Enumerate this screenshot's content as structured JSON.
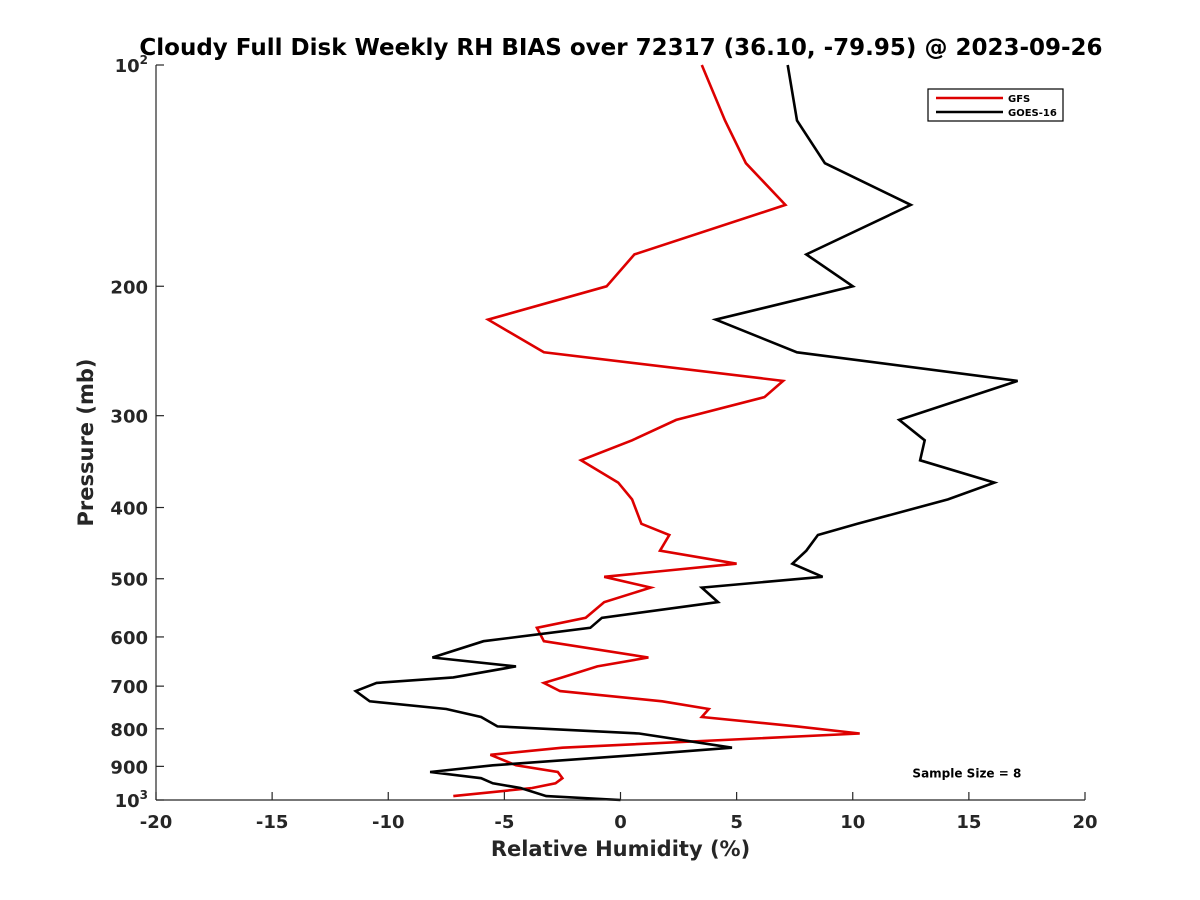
{
  "chart_data": {
    "type": "line",
    "orientation": "profile",
    "title": "Cloudy Full Disk Weekly RH BIAS over 72317 (36.10, -79.95) @ 2023-09-26",
    "xlabel": "Relative Humidity (%)",
    "ylabel": "Pressure (mb)",
    "xlim": [
      -20,
      20
    ],
    "ylim": [
      100,
      1000
    ],
    "y_scale": "log",
    "y_reversed": true,
    "grid": false,
    "legend_placement": "top-right",
    "x_ticks": [
      {
        "value": -20,
        "label": "-20"
      },
      {
        "value": -15,
        "label": "-15"
      },
      {
        "value": -10,
        "label": "-10"
      },
      {
        "value": -5,
        "label": "-5"
      },
      {
        "value": 0,
        "label": "0"
      },
      {
        "value": 5,
        "label": "5"
      },
      {
        "value": 10,
        "label": "10"
      },
      {
        "value": 15,
        "label": "15"
      },
      {
        "value": 20,
        "label": "20"
      }
    ],
    "y_ticks": [
      {
        "value": 100,
        "base": "10",
        "exp": "2"
      },
      {
        "value": 200,
        "label": "200"
      },
      {
        "value": 300,
        "label": "300"
      },
      {
        "value": 400,
        "label": "400"
      },
      {
        "value": 500,
        "label": "500"
      },
      {
        "value": 600,
        "label": "600"
      },
      {
        "value": 700,
        "label": "700"
      },
      {
        "value": 800,
        "label": "800"
      },
      {
        "value": 900,
        "label": "900"
      },
      {
        "value": 1000,
        "base": "10",
        "exp": "3"
      }
    ],
    "series": [
      {
        "name": "GFS",
        "color": "#dd0000",
        "points": [
          {
            "x": 3.5,
            "p": 100
          },
          {
            "x": 4.5,
            "p": 119
          },
          {
            "x": 5.4,
            "p": 136
          },
          {
            "x": 7.1,
            "p": 155
          },
          {
            "x": 0.6,
            "p": 181
          },
          {
            "x": -0.6,
            "p": 200
          },
          {
            "x": -5.7,
            "p": 222
          },
          {
            "x": -3.3,
            "p": 246
          },
          {
            "x": 7.0,
            "p": 269
          },
          {
            "x": 6.2,
            "p": 283
          },
          {
            "x": 2.4,
            "p": 304
          },
          {
            "x": 0.5,
            "p": 324
          },
          {
            "x": -1.7,
            "p": 345
          },
          {
            "x": -0.1,
            "p": 370
          },
          {
            "x": 0.5,
            "p": 390
          },
          {
            "x": 0.9,
            "p": 421
          },
          {
            "x": 2.1,
            "p": 436
          },
          {
            "x": 1.7,
            "p": 458
          },
          {
            "x": 5.0,
            "p": 477
          },
          {
            "x": -0.7,
            "p": 497
          },
          {
            "x": 1.3,
            "p": 514
          },
          {
            "x": -0.7,
            "p": 538
          },
          {
            "x": -1.5,
            "p": 565
          },
          {
            "x": -3.6,
            "p": 583
          },
          {
            "x": -3.3,
            "p": 608
          },
          {
            "x": 1.2,
            "p": 640
          },
          {
            "x": -1.0,
            "p": 658
          },
          {
            "x": -2.5,
            "p": 681
          },
          {
            "x": -3.3,
            "p": 693
          },
          {
            "x": -2.6,
            "p": 711
          },
          {
            "x": 1.8,
            "p": 734
          },
          {
            "x": 3.8,
            "p": 752
          },
          {
            "x": 3.5,
            "p": 771
          },
          {
            "x": 7.6,
            "p": 794
          },
          {
            "x": 10.3,
            "p": 812
          },
          {
            "x": -2.5,
            "p": 849
          },
          {
            "x": -5.6,
            "p": 868
          },
          {
            "x": -4.5,
            "p": 897
          },
          {
            "x": -2.7,
            "p": 916
          },
          {
            "x": -2.5,
            "p": 934
          },
          {
            "x": -2.8,
            "p": 949
          },
          {
            "x": -3.8,
            "p": 963
          },
          {
            "x": -7.2,
            "p": 988
          }
        ]
      },
      {
        "name": "GOES-16",
        "color": "#000000",
        "points": [
          {
            "x": 7.2,
            "p": 100
          },
          {
            "x": 7.6,
            "p": 119
          },
          {
            "x": 8.8,
            "p": 136
          },
          {
            "x": 12.5,
            "p": 155
          },
          {
            "x": 8.0,
            "p": 181
          },
          {
            "x": 10.0,
            "p": 200
          },
          {
            "x": 4.1,
            "p": 222
          },
          {
            "x": 7.6,
            "p": 246
          },
          {
            "x": 17.1,
            "p": 269
          },
          {
            "x": 12.0,
            "p": 304
          },
          {
            "x": 13.1,
            "p": 324
          },
          {
            "x": 12.9,
            "p": 345
          },
          {
            "x": 16.1,
            "p": 370
          },
          {
            "x": 14.1,
            "p": 390
          },
          {
            "x": 10.2,
            "p": 421
          },
          {
            "x": 8.5,
            "p": 436
          },
          {
            "x": 8.0,
            "p": 458
          },
          {
            "x": 7.4,
            "p": 477
          },
          {
            "x": 8.7,
            "p": 497
          },
          {
            "x": 3.5,
            "p": 514
          },
          {
            "x": 4.2,
            "p": 538
          },
          {
            "x": -0.8,
            "p": 565
          },
          {
            "x": -1.3,
            "p": 583
          },
          {
            "x": -5.9,
            "p": 608
          },
          {
            "x": -8.1,
            "p": 640
          },
          {
            "x": -4.5,
            "p": 658
          },
          {
            "x": -7.2,
            "p": 681
          },
          {
            "x": -10.5,
            "p": 693
          },
          {
            "x": -11.4,
            "p": 711
          },
          {
            "x": -10.8,
            "p": 734
          },
          {
            "x": -7.5,
            "p": 752
          },
          {
            "x": -6.0,
            "p": 771
          },
          {
            "x": -5.3,
            "p": 794
          },
          {
            "x": 0.8,
            "p": 812
          },
          {
            "x": 4.8,
            "p": 849
          },
          {
            "x": 0.8,
            "p": 868
          },
          {
            "x": -5.5,
            "p": 897
          },
          {
            "x": -8.2,
            "p": 916
          },
          {
            "x": -6.0,
            "p": 934
          },
          {
            "x": -5.5,
            "p": 949
          },
          {
            "x": -4.3,
            "p": 963
          },
          {
            "x": -3.2,
            "p": 988
          },
          {
            "x": 0.0,
            "p": 1000
          }
        ]
      }
    ],
    "annotations": [
      {
        "text": "Sample Size = 8",
        "x": 15,
        "p": 920
      }
    ]
  }
}
